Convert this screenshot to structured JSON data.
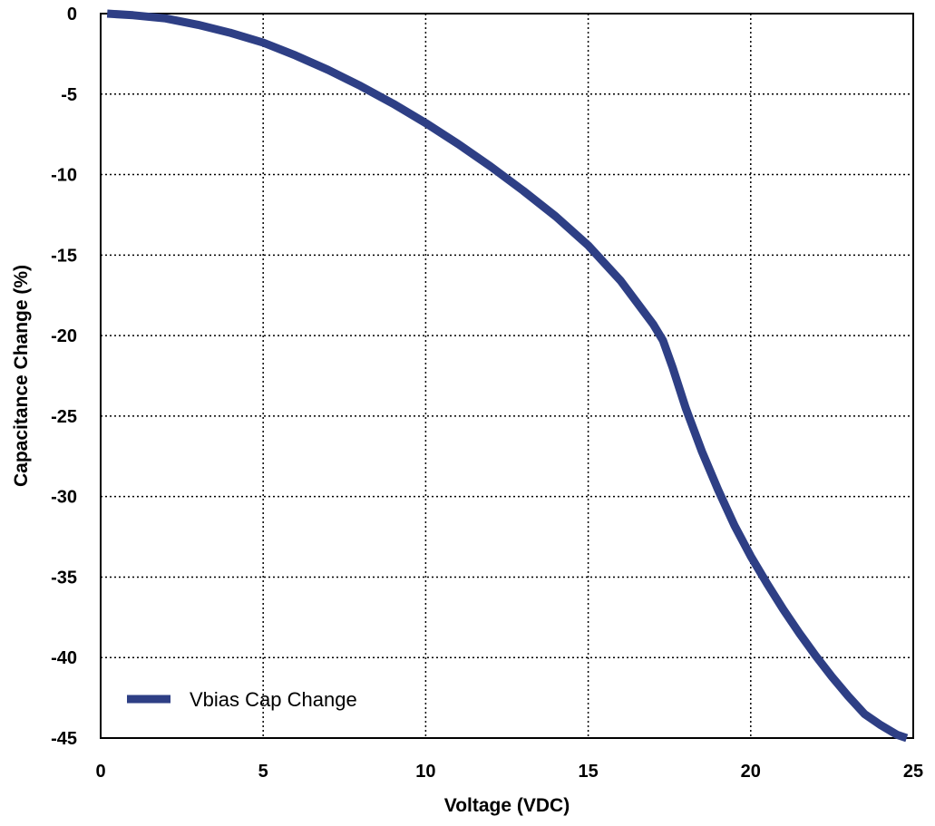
{
  "chart_data": {
    "type": "line",
    "title": "",
    "xlabel": "Voltage (VDC)",
    "ylabel": "Capacitance Change (%)",
    "xlim": [
      0,
      25
    ],
    "ylim": [
      -45,
      0
    ],
    "xticks": [
      0,
      5,
      10,
      15,
      20,
      25
    ],
    "yticks": [
      0,
      -5,
      -10,
      -15,
      -20,
      -25,
      -30,
      -35,
      -40,
      -45
    ],
    "xtick_labels": [
      "0",
      "5",
      "10",
      "15",
      "20",
      "25"
    ],
    "ytick_labels": [
      "0",
      "-5",
      "-10",
      "-15",
      "-20",
      "-25",
      "-30",
      "-35",
      "-40",
      "-45"
    ],
    "grid": true,
    "grid_style": "dotted",
    "legend_position": "bottom-left",
    "series": [
      {
        "name": "Vbias Cap Change",
        "color": "#2e3f85",
        "x": [
          0.2,
          1,
          2,
          3,
          4,
          5,
          6,
          7,
          8,
          9,
          10,
          11,
          12,
          13,
          14,
          15,
          16,
          17,
          17.3,
          17.6,
          18,
          18.5,
          19,
          19.5,
          20,
          20.5,
          21,
          21.5,
          22,
          22.5,
          23,
          23.5,
          24,
          24.5,
          24.8
        ],
        "y": [
          0,
          -0.1,
          -0.3,
          -0.7,
          -1.2,
          -1.8,
          -2.6,
          -3.5,
          -4.5,
          -5.6,
          -6.8,
          -8.1,
          -9.5,
          -11.0,
          -12.6,
          -14.4,
          -16.6,
          -19.3,
          -20.3,
          -22.0,
          -24.5,
          -27.2,
          -29.6,
          -31.8,
          -33.7,
          -35.4,
          -37.0,
          -38.5,
          -39.9,
          -41.2,
          -42.4,
          -43.5,
          -44.2,
          -44.8,
          -45.0
        ]
      }
    ]
  }
}
